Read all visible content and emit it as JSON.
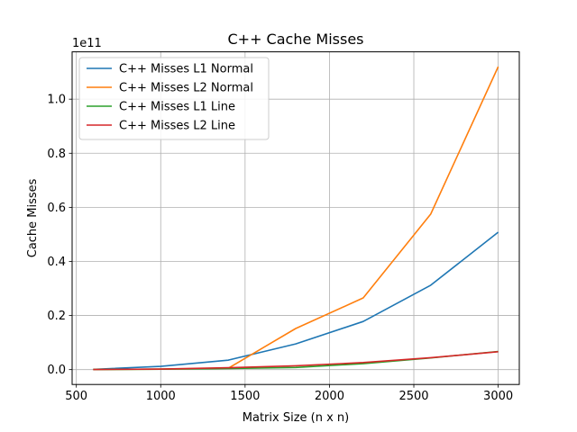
{
  "chart_data": {
    "type": "line",
    "title": "C++ Cache Misses",
    "xlabel": "Matrix Size (n x n)",
    "ylabel": "Cache Misses",
    "y_offset_label": "1e11",
    "y_scale": 100000000000.0,
    "xlim": [
      475,
      3125
    ],
    "ylim": [
      -0.055,
      1.175
    ],
    "x_ticks": [
      500,
      1000,
      1500,
      2000,
      2500,
      3000
    ],
    "x_tick_labels": [
      "500",
      "1000",
      "1500",
      "2000",
      "2500",
      "3000"
    ],
    "y_ticks": [
      0.0,
      0.2,
      0.4,
      0.6,
      0.8,
      1.0
    ],
    "y_tick_labels": [
      "0.0",
      "0.2",
      "0.4",
      "0.6",
      "0.8",
      "1.0"
    ],
    "grid": true,
    "legend_position": "top-left",
    "x": [
      600,
      1000,
      1400,
      1800,
      2200,
      2600,
      3000
    ],
    "series": [
      {
        "name": "C++ Misses L1 Normal",
        "color": "#1f77b4",
        "values": [
          0.001,
          0.012,
          0.035,
          0.095,
          0.178,
          0.312,
          0.508
        ]
      },
      {
        "name": "C++ Misses L2 Normal",
        "color": "#ff7f0e",
        "values": [
          0.0005,
          0.0015,
          0.005,
          0.152,
          0.265,
          0.575,
          1.12
        ]
      },
      {
        "name": "C++ Misses L1 Line",
        "color": "#2ca02c",
        "values": [
          0.0005,
          0.0015,
          0.004,
          0.008,
          0.022,
          0.043,
          0.067
        ]
      },
      {
        "name": "C++ Misses L2 Line",
        "color": "#d62728",
        "values": [
          0.0005,
          0.002,
          0.007,
          0.014,
          0.026,
          0.044,
          0.066
        ]
      }
    ]
  }
}
